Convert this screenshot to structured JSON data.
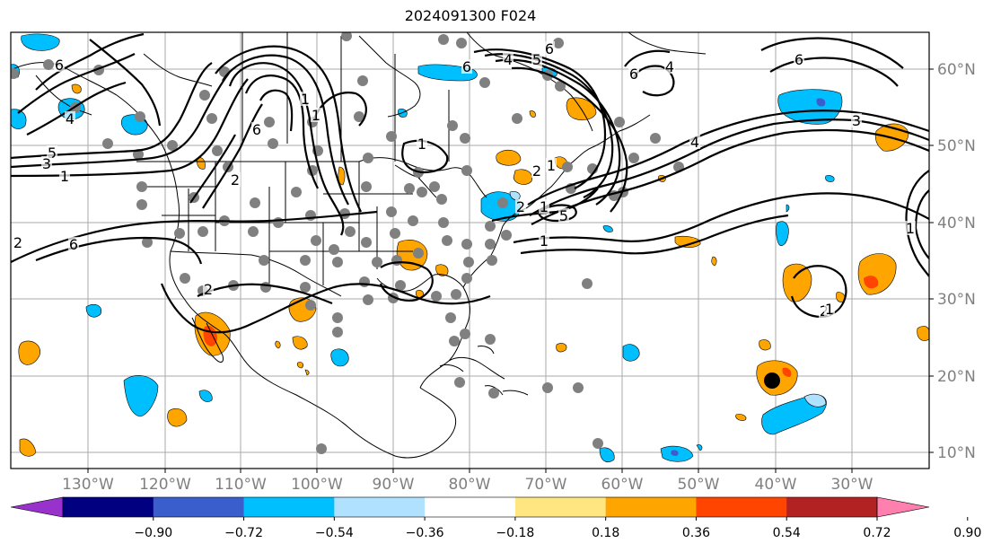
{
  "title": "2024091300 F024",
  "lon_ticks": [
    "130°W",
    "120°W",
    "110°W",
    "100°W",
    "90°W",
    "80°W",
    "70°W",
    "60°W",
    "50°W",
    "40°W",
    "30°W"
  ],
  "lat_ticks": [
    "60°N",
    "50°N",
    "40°N",
    "30°N",
    "20°N",
    "10°N"
  ],
  "colorbar": {
    "colors": [
      "#9932cc",
      "#000080",
      "#3a5fcd",
      "#00bfff",
      "#b0e2ff",
      "#ffffff",
      "#ffe680",
      "#ffa500",
      "#ff4500",
      "#b22222",
      "#ff7fae"
    ],
    "tick_labels": [
      "−0.90",
      "−0.72",
      "−0.54",
      "−0.36",
      "−0.18",
      "0.18",
      "0.36",
      "0.54",
      "0.72",
      "0.90"
    ]
  },
  "contour_labels": [
    "6",
    "4",
    "5",
    "3",
    "1",
    "2",
    "6",
    "1",
    "2",
    "6",
    "4",
    "1",
    "5",
    "6",
    "3",
    "4",
    "1",
    "1",
    "2",
    "6",
    "1",
    "2",
    "5",
    "6",
    "4",
    "1",
    "1",
    "2",
    "2",
    "6",
    "1"
  ]
}
